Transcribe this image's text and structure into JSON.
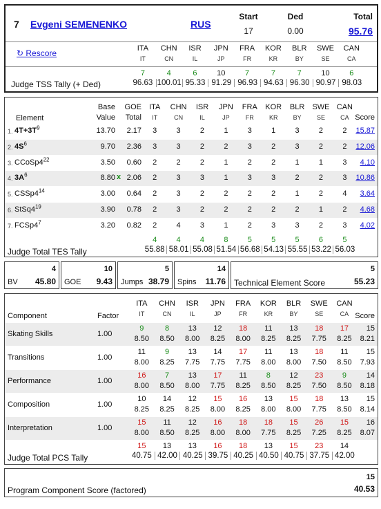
{
  "skater": {
    "rank": "7",
    "name": "Evgeni SEMENENKO",
    "nation": "RUS",
    "start_label": "Start",
    "start": "17",
    "ded_label": "Ded",
    "ded": "0.00",
    "total_label": "Total",
    "total": "95.76"
  },
  "rescore": "↻ Rescore",
  "judges": [
    {
      "code": "ITA",
      "sub": "IT"
    },
    {
      "code": "CHN",
      "sub": "CN"
    },
    {
      "code": "ISR",
      "sub": "IL"
    },
    {
      "code": "JPN",
      "sub": "JP"
    },
    {
      "code": "FRA",
      "sub": "FR"
    },
    {
      "code": "KOR",
      "sub": "KR"
    },
    {
      "code": "BLR",
      "sub": "BY"
    },
    {
      "code": "SWE",
      "sub": "SE"
    },
    {
      "code": "CAN",
      "sub": "CA"
    }
  ],
  "tss": {
    "label": "Judge TSS Tally (+ Ded)",
    "ranks": [
      "7",
      "4",
      "6",
      "10",
      "7",
      "7",
      "7",
      "10",
      "6"
    ],
    "values": [
      "96.63",
      "100.01",
      "95.33",
      "91.29",
      "96.93",
      "94.63",
      "96.30",
      "90.97",
      "98.03"
    ]
  },
  "tes_header": {
    "element": "Element",
    "base": "Base",
    "value": "Value",
    "goe": "GOE",
    "total": "Total",
    "score": "Score"
  },
  "elements": [
    {
      "num": "1.",
      "name": "4T+3T",
      "sup": "9",
      "base": "13.70",
      "x": "",
      "goe": "2.17",
      "marks": [
        "3",
        "3",
        "2",
        "1",
        "3",
        "1",
        "3",
        "2",
        "2"
      ],
      "score": "15.87"
    },
    {
      "num": "2.",
      "name": "4S",
      "sup": "6",
      "base": "9.70",
      "x": "",
      "goe": "2.36",
      "marks": [
        "3",
        "3",
        "2",
        "2",
        "3",
        "2",
        "3",
        "2",
        "2"
      ],
      "score": "12.06"
    },
    {
      "num": "3.",
      "name": "CCoSp4",
      "sup": "22",
      "base": "3.50",
      "x": "",
      "goe": "0.60",
      "marks": [
        "2",
        "2",
        "2",
        "1",
        "2",
        "2",
        "1",
        "1",
        "3"
      ],
      "score": "4.10"
    },
    {
      "num": "4.",
      "name": "3A",
      "sup": "6",
      "base": "8.80",
      "x": "x",
      "goe": "2.06",
      "marks": [
        "2",
        "3",
        "3",
        "1",
        "3",
        "3",
        "2",
        "2",
        "3"
      ],
      "score": "10.86"
    },
    {
      "num": "5.",
      "name": "CSSp4",
      "sup": "14",
      "base": "3.00",
      "x": "",
      "goe": "0.64",
      "marks": [
        "2",
        "3",
        "2",
        "2",
        "2",
        "2",
        "1",
        "2",
        "4"
      ],
      "score": "3.64"
    },
    {
      "num": "6.",
      "name": "StSq4",
      "sup": "19",
      "base": "3.90",
      "x": "",
      "goe": "0.78",
      "marks": [
        "2",
        "3",
        "2",
        "2",
        "2",
        "2",
        "2",
        "1",
        "2"
      ],
      "score": "4.68"
    },
    {
      "num": "7.",
      "name": "FCSp4",
      "sup": "7",
      "base": "3.20",
      "x": "",
      "goe": "0.82",
      "marks": [
        "2",
        "4",
        "3",
        "1",
        "2",
        "3",
        "3",
        "2",
        "3"
      ],
      "score": "4.02"
    }
  ],
  "tes_tally": {
    "label": "Judge Total TES Tally",
    "ranks": [
      "4",
      "4",
      "4",
      "8",
      "5",
      "5",
      "5",
      "6",
      "5"
    ],
    "values": [
      "55.88",
      "58.01",
      "55.08",
      "51.54",
      "56.68",
      "54.13",
      "55.55",
      "53.22",
      "56.03"
    ]
  },
  "summary": {
    "bv_label": "BV",
    "bv_count": "4",
    "bv": "45.80",
    "goe_label": "GOE",
    "goe_count": "10",
    "goe": "9.43",
    "jumps_label": "Jumps",
    "jumps_count": "5",
    "jumps": "38.79",
    "spins_label": "Spins",
    "spins_count": "14",
    "spins": "11.76",
    "tes_label": "Technical Element Score",
    "tes_count": "5",
    "tes": "55.23"
  },
  "pcs_header": {
    "component": "Component",
    "factor": "Factor",
    "score": "Score"
  },
  "components": [
    {
      "name": "Skating Skills",
      "factor": "1.00",
      "ranks": [
        "9",
        "8",
        "13",
        "12",
        "18",
        "11",
        "13",
        "18",
        "17"
      ],
      "marks": [
        "8.50",
        "8.50",
        "8.00",
        "8.25",
        "8.00",
        "8.25",
        "8.25",
        "7.75",
        "8.25"
      ],
      "score_rank": "15",
      "score": "8.21"
    },
    {
      "name": "Transitions",
      "factor": "1.00",
      "ranks": [
        "11",
        "9",
        "13",
        "14",
        "17",
        "11",
        "13",
        "18",
        "11"
      ],
      "marks": [
        "8.00",
        "8.25",
        "7.75",
        "7.75",
        "7.75",
        "8.00",
        "8.00",
        "7.50",
        "8.50"
      ],
      "score_rank": "15",
      "score": "7.93"
    },
    {
      "name": "Performance",
      "factor": "1.00",
      "ranks": [
        "16",
        "7",
        "13",
        "17",
        "11",
        "8",
        "12",
        "23",
        "9"
      ],
      "marks": [
        "8.00",
        "8.50",
        "8.00",
        "7.75",
        "8.25",
        "8.50",
        "8.25",
        "7.50",
        "8.50"
      ],
      "score_rank": "14",
      "score": "8.18"
    },
    {
      "name": "Composition",
      "factor": "1.00",
      "ranks": [
        "10",
        "14",
        "12",
        "15",
        "16",
        "13",
        "15",
        "18",
        "13"
      ],
      "marks": [
        "8.25",
        "8.25",
        "8.25",
        "8.00",
        "8.25",
        "8.00",
        "8.00",
        "7.75",
        "8.50"
      ],
      "score_rank": "15",
      "score": "8.14"
    },
    {
      "name": "Interpretation",
      "factor": "1.00",
      "ranks": [
        "15",
        "11",
        "12",
        "16",
        "18",
        "18",
        "15",
        "26",
        "15"
      ],
      "marks": [
        "8.00",
        "8.50",
        "8.25",
        "8.00",
        "8.00",
        "7.75",
        "8.25",
        "7.25",
        "8.25"
      ],
      "score_rank": "16",
      "score": "8.07"
    }
  ],
  "pcs_tally": {
    "label": "Judge Total PCS Tally",
    "ranks": [
      "15",
      "13",
      "13",
      "16",
      "18",
      "13",
      "15",
      "23",
      "14"
    ],
    "values": [
      "40.75",
      "42.00",
      "40.25",
      "39.75",
      "40.25",
      "40.50",
      "40.75",
      "37.75",
      "42.00"
    ]
  },
  "pcs_total": {
    "label": "Program Component Score (factored)",
    "rank": "15",
    "value": "40.53"
  },
  "colors": {
    "green": "#1a8c1a",
    "red": "#d01818",
    "link": "#1a1ad6",
    "stripe": "#ececec"
  }
}
